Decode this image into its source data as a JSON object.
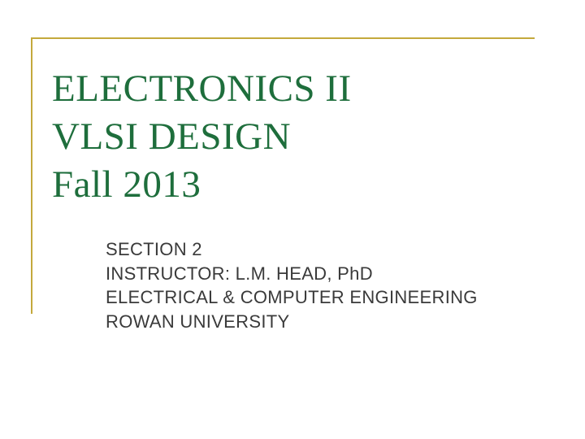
{
  "slide": {
    "background_color": "#ffffff",
    "border_color": "#c4a93c",
    "border_width": 2,
    "title": {
      "color": "#1e6e3c",
      "font_family": "Times New Roman",
      "font_size": 47,
      "lines": [
        "ELECTRONICS II",
        "VLSI DESIGN",
        "Fall 2013"
      ]
    },
    "subtitle": {
      "color": "#3a3a3a",
      "font_family": "Arial",
      "font_size": 22,
      "lines": [
        "SECTION 2",
        "INSTRUCTOR: L.M. HEAD, PhD",
        "ELECTRICAL & COMPUTER ENGINEERING",
        "ROWAN UNIVERSITY"
      ]
    }
  }
}
